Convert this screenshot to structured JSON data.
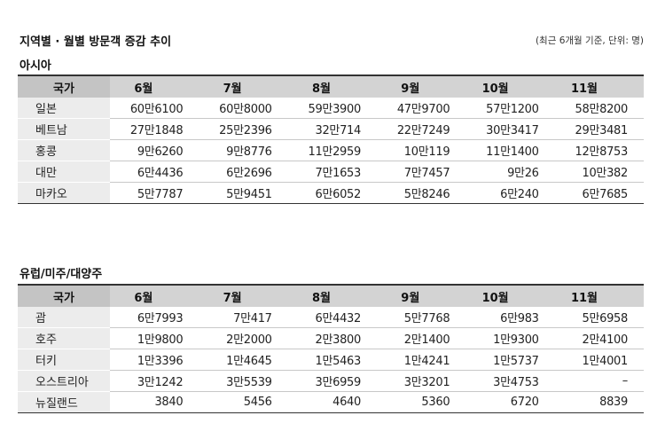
{
  "title": "지역별 · 월별 방문객 증감 추이",
  "unit_note": "(최근 6개월 기준, 단위: 명)",
  "header": {
    "country": "국가",
    "months": [
      "6월",
      "7월",
      "8월",
      "9월",
      "10월",
      "11월"
    ]
  },
  "asia": {
    "title": "아시아",
    "rows": [
      {
        "country": "일본",
        "values": [
          "60만6100",
          "60만8000",
          "59만3900",
          "47만9700",
          "57만1200",
          "58만8200"
        ]
      },
      {
        "country": "베트남",
        "values": [
          "27만1848",
          "25만2396",
          "32만714",
          "22만7249",
          "30만3417",
          "29만3481"
        ]
      },
      {
        "country": "홍콩",
        "values": [
          "9만6260",
          "9만8776",
          "11만2959",
          "10만119",
          "11만1400",
          "12만8753"
        ]
      },
      {
        "country": "대만",
        "values": [
          "6만4436",
          "6만2696",
          "7만1653",
          "7만7457",
          "9만26",
          "10만382"
        ]
      },
      {
        "country": "마카오",
        "values": [
          "5만7787",
          "5만9451",
          "6만6052",
          "5만8246",
          "6만240",
          "6만7685"
        ]
      }
    ]
  },
  "europe": {
    "title": "유럽/미주/대양주",
    "rows": [
      {
        "country": "괌",
        "values": [
          "6만7993",
          "7만417",
          "6만4432",
          "5만7768",
          "6만983",
          "5만6958"
        ]
      },
      {
        "country": "호주",
        "values": [
          "1만9800",
          "2만2000",
          "2만3800",
          "2만1400",
          "1만9300",
          "2만4100"
        ]
      },
      {
        "country": "터키",
        "values": [
          "1만3396",
          "1만4645",
          "1만5463",
          "1만4241",
          "1만5737",
          "1만4001"
        ]
      },
      {
        "country": "오스트리아",
        "values": [
          "3만1242",
          "3만5539",
          "3만6959",
          "3만3201",
          "3만4753",
          "–"
        ]
      },
      {
        "country": "뉴질랜드",
        "values": [
          "3840",
          "5456",
          "4640",
          "5360",
          "6720",
          "8839"
        ]
      }
    ]
  }
}
